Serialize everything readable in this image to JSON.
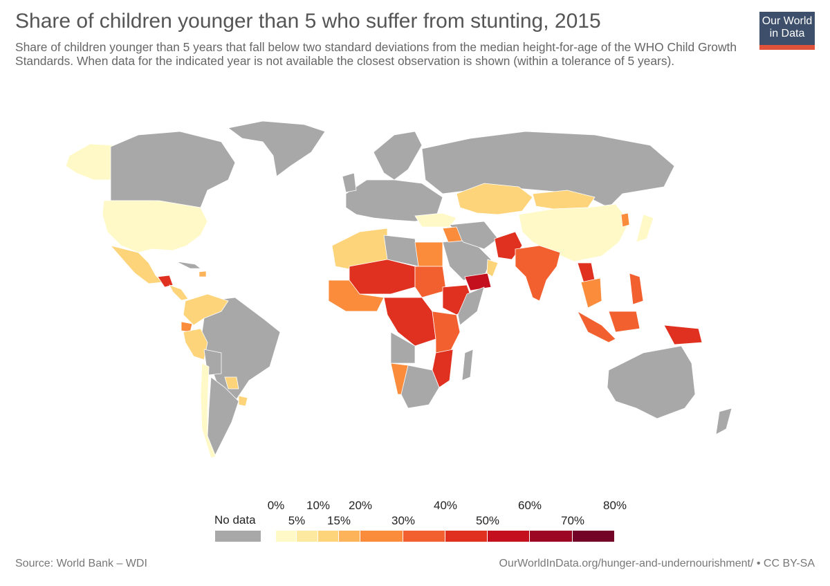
{
  "header": {
    "title": "Share of children younger than 5 who suffer from stunting, 2015",
    "subtitle": "Share of children younger than 5 years that fall below two standard deviations from the median height-for-age of the WHO Child Growth Standards. When data for the indicated year is not available the closest observation is shown (within a tolerance of 5 years)."
  },
  "logo": {
    "line1": "Our World",
    "line2": "in Data"
  },
  "colors": {
    "no_data": "#a8a8a8",
    "scale": [
      "#fff9c8",
      "#fee9a0",
      "#fdd47a",
      "#fcb35a",
      "#fa8c3c",
      "#f2602f",
      "#e0301f",
      "#c4101e",
      "#9c0823",
      "#740328"
    ]
  },
  "legend": {
    "no_data_label": "No data",
    "top_labels": [
      "0%",
      "10%",
      "20%",
      "40%",
      "60%",
      "80%"
    ],
    "bottom_labels": [
      "5%",
      "15%",
      "30%",
      "50%",
      "70%"
    ]
  },
  "footer": {
    "source": "Source: World Bank – WDI",
    "url_license": "OurWorldInData.org/hunger-and-undernourishment/ • CC BY-SA"
  }
}
